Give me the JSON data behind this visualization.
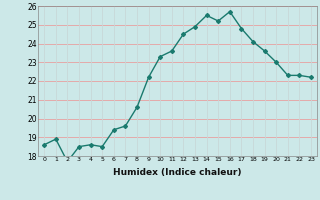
{
  "x": [
    0,
    1,
    2,
    3,
    4,
    5,
    6,
    7,
    8,
    9,
    10,
    11,
    12,
    13,
    14,
    15,
    16,
    17,
    18,
    19,
    20,
    21,
    22,
    23
  ],
  "y": [
    18.6,
    18.9,
    17.7,
    18.5,
    18.6,
    18.5,
    19.4,
    19.6,
    20.6,
    22.2,
    23.3,
    23.6,
    24.5,
    24.9,
    25.5,
    25.2,
    25.7,
    24.8,
    24.1,
    23.6,
    23.0,
    22.3,
    22.3,
    22.2
  ],
  "ylim": [
    18,
    26
  ],
  "yticks": [
    18,
    19,
    20,
    21,
    22,
    23,
    24,
    25,
    26
  ],
  "xticks": [
    0,
    1,
    2,
    3,
    4,
    5,
    6,
    7,
    8,
    9,
    10,
    11,
    12,
    13,
    14,
    15,
    16,
    17,
    18,
    19,
    20,
    21,
    22,
    23
  ],
  "xlabel": "Humidex (Indice chaleur)",
  "line_color": "#1a7a6e",
  "marker": "D",
  "marker_size": 2,
  "bg_color": "#cce8e8",
  "grid_color_h": "#e8a0a0",
  "grid_color_v": "#c8d8d8",
  "title": ""
}
